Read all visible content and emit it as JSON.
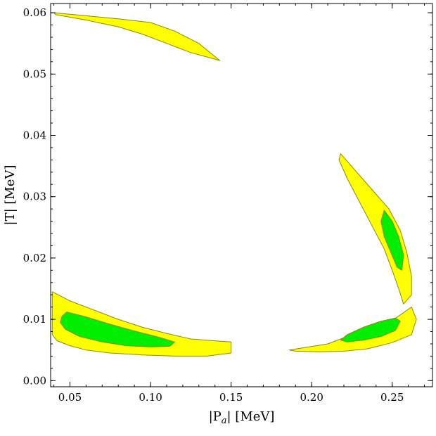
{
  "chart_data": {
    "type": "contour",
    "title": "",
    "xlabel": "|P",
    "xlabel_sub": "a",
    "xlabel_tail": "| [MeV]",
    "ylabel": "|T| [MeV]",
    "xlim": [
      0.038,
      0.275
    ],
    "ylim": [
      -0.001,
      0.0615
    ],
    "x_ticks": [
      0.05,
      0.1,
      0.15,
      0.2,
      0.25
    ],
    "x_tick_labels": [
      "0.05",
      "0.10",
      "0.15",
      "0.20",
      "0.25"
    ],
    "y_ticks": [
      0.0,
      0.01,
      0.02,
      0.03,
      0.04,
      0.05,
      0.06
    ],
    "y_tick_labels": [
      "0.00",
      "0.01",
      "0.02",
      "0.03",
      "0.04",
      "0.05",
      "0.06"
    ],
    "colors": {
      "outer": "#ffff00",
      "inner": "#00ee00",
      "edge": "#8a8a00"
    },
    "regions": [
      {
        "name": "top-left-band",
        "level": "outer",
        "points": [
          [
            0.04,
            0.06
          ],
          [
            0.06,
            0.0595
          ],
          [
            0.08,
            0.059
          ],
          [
            0.1,
            0.0584
          ],
          [
            0.115,
            0.057
          ],
          [
            0.13,
            0.055
          ],
          [
            0.143,
            0.0522
          ],
          [
            0.139,
            0.0525
          ],
          [
            0.125,
            0.0535
          ],
          [
            0.11,
            0.055
          ],
          [
            0.095,
            0.0565
          ],
          [
            0.08,
            0.0577
          ],
          [
            0.06,
            0.0588
          ],
          [
            0.041,
            0.0597
          ]
        ]
      },
      {
        "name": "bottom-left-band",
        "level": "outer",
        "points": [
          [
            0.039,
            0.0145
          ],
          [
            0.05,
            0.013
          ],
          [
            0.065,
            0.0115
          ],
          [
            0.08,
            0.01
          ],
          [
            0.095,
            0.0087
          ],
          [
            0.11,
            0.0077
          ],
          [
            0.125,
            0.0068
          ],
          [
            0.14,
            0.0065
          ],
          [
            0.15,
            0.0063
          ],
          [
            0.15,
            0.0045
          ],
          [
            0.135,
            0.004
          ],
          [
            0.115,
            0.004
          ],
          [
            0.095,
            0.0042
          ],
          [
            0.075,
            0.0045
          ],
          [
            0.06,
            0.005
          ],
          [
            0.05,
            0.0057
          ],
          [
            0.042,
            0.0065
          ],
          [
            0.039,
            0.0075
          ]
        ]
      },
      {
        "name": "bottom-left-core",
        "level": "inner",
        "points": [
          [
            0.045,
            0.0105
          ],
          [
            0.048,
            0.0112
          ],
          [
            0.06,
            0.0104
          ],
          [
            0.075,
            0.0092
          ],
          [
            0.09,
            0.0081
          ],
          [
            0.105,
            0.0071
          ],
          [
            0.115,
            0.0063
          ],
          [
            0.112,
            0.0056
          ],
          [
            0.1,
            0.0055
          ],
          [
            0.085,
            0.0057
          ],
          [
            0.07,
            0.0063
          ],
          [
            0.056,
            0.0072
          ],
          [
            0.047,
            0.0084
          ],
          [
            0.044,
            0.0095
          ]
        ]
      },
      {
        "name": "bottom-right-band",
        "level": "outer",
        "points": [
          [
            0.186,
            0.005
          ],
          [
            0.21,
            0.006
          ],
          [
            0.23,
            0.008
          ],
          [
            0.25,
            0.0098
          ],
          [
            0.262,
            0.012
          ],
          [
            0.265,
            0.01
          ],
          [
            0.262,
            0.0075
          ],
          [
            0.25,
            0.0062
          ],
          [
            0.235,
            0.0052
          ],
          [
            0.22,
            0.0048
          ],
          [
            0.205,
            0.0047
          ],
          [
            0.19,
            0.0048
          ]
        ]
      },
      {
        "name": "bottom-right-core",
        "level": "inner",
        "points": [
          [
            0.218,
            0.0066
          ],
          [
            0.222,
            0.0075
          ],
          [
            0.232,
            0.0087
          ],
          [
            0.243,
            0.0097
          ],
          [
            0.252,
            0.0102
          ],
          [
            0.255,
            0.0097
          ],
          [
            0.252,
            0.0082
          ],
          [
            0.243,
            0.0072
          ],
          [
            0.232,
            0.0066
          ],
          [
            0.222,
            0.0063
          ]
        ]
      },
      {
        "name": "right-band",
        "level": "outer",
        "points": [
          [
            0.218,
            0.037
          ],
          [
            0.228,
            0.034
          ],
          [
            0.238,
            0.031
          ],
          [
            0.248,
            0.028
          ],
          [
            0.255,
            0.0245
          ],
          [
            0.259,
            0.021
          ],
          [
            0.262,
            0.017
          ],
          [
            0.262,
            0.014
          ],
          [
            0.257,
            0.0125
          ],
          [
            0.254,
            0.015
          ],
          [
            0.25,
            0.018
          ],
          [
            0.245,
            0.0215
          ],
          [
            0.238,
            0.025
          ],
          [
            0.23,
            0.029
          ],
          [
            0.222,
            0.033
          ],
          [
            0.217,
            0.036
          ]
        ]
      },
      {
        "name": "right-core",
        "level": "inner",
        "points": [
          [
            0.245,
            0.0278
          ],
          [
            0.25,
            0.026
          ],
          [
            0.254,
            0.0235
          ],
          [
            0.257,
            0.0205
          ],
          [
            0.256,
            0.018
          ],
          [
            0.253,
            0.0185
          ],
          [
            0.249,
            0.021
          ],
          [
            0.245,
            0.0235
          ],
          [
            0.243,
            0.026
          ]
        ]
      }
    ]
  }
}
